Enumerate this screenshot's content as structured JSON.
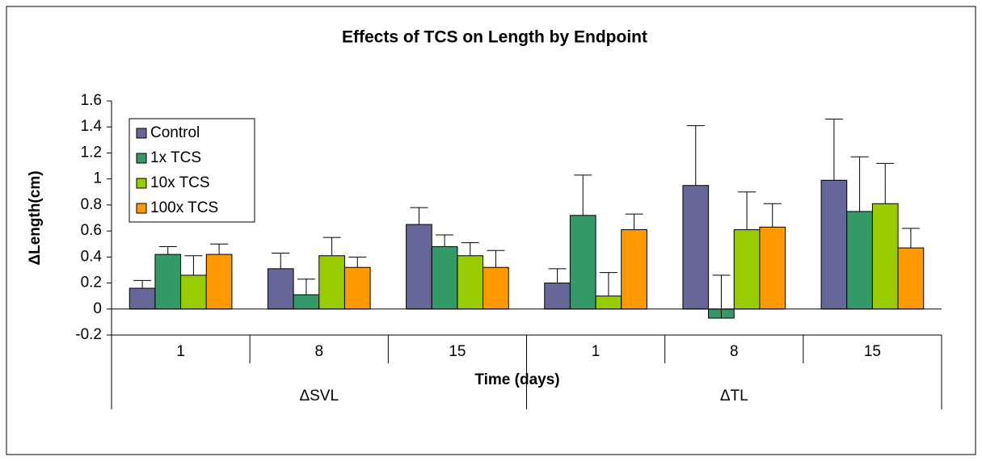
{
  "chart_data": {
    "type": "bar",
    "title": "Effects of TCS on Length by Endpoint",
    "x_label": "Time (days)",
    "y_label": "ΔLength(cm)",
    "categories": [
      "1",
      "8",
      "15",
      "1",
      "8",
      "15"
    ],
    "category_groups": [
      "ΔSVL",
      "ΔTL"
    ],
    "series": [
      {
        "name": "Control",
        "color": "#666699",
        "values": [
          0.16,
          0.31,
          0.65,
          0.2,
          0.95,
          0.99
        ],
        "errors": [
          0.06,
          0.12,
          0.13,
          0.11,
          0.46,
          0.47
        ]
      },
      {
        "name": "1x TCS",
        "color": "#339966",
        "values": [
          0.42,
          0.11,
          0.48,
          0.72,
          -0.07,
          0.75
        ],
        "errors": [
          0.06,
          0.12,
          0.09,
          0.31,
          0.33,
          0.42
        ]
      },
      {
        "name": "10x TCS",
        "color": "#99cc00",
        "values": [
          0.26,
          0.41,
          0.41,
          0.1,
          0.61,
          0.81
        ],
        "errors": [
          0.15,
          0.14,
          0.1,
          0.18,
          0.29,
          0.31
        ]
      },
      {
        "name": "100x TCS",
        "color": "#ff9900",
        "values": [
          0.42,
          0.32,
          0.32,
          0.61,
          0.63,
          0.47
        ],
        "errors": [
          0.08,
          0.08,
          0.13,
          0.12,
          0.18,
          0.15
        ]
      }
    ],
    "ylim": [
      -0.2,
      1.6
    ],
    "yticks": [
      -0.2,
      0,
      0.2,
      0.4,
      0.6,
      0.8,
      1,
      1.2,
      1.4,
      1.6
    ],
    "legend": "upper-left"
  }
}
